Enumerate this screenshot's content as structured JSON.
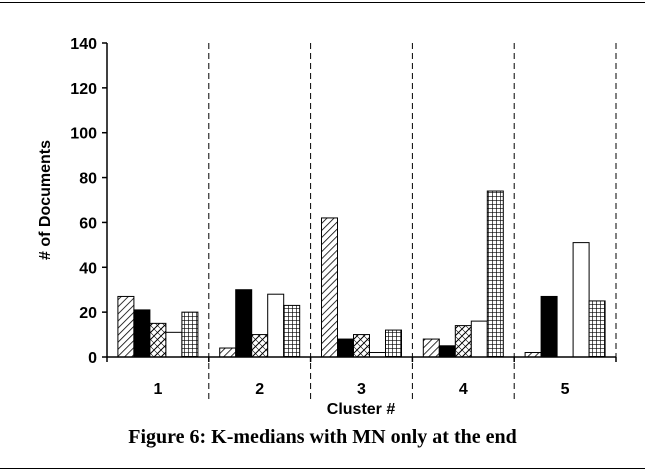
{
  "chart_data": {
    "type": "bar",
    "categories": [
      "1",
      "2",
      "3",
      "4",
      "5"
    ],
    "series": [
      {
        "pattern": "diagonal-hatch",
        "values": [
          27,
          4,
          62,
          8,
          2
        ]
      },
      {
        "pattern": "solid-black",
        "values": [
          21,
          30,
          8,
          5,
          27
        ]
      },
      {
        "pattern": "cross-hatch",
        "values": [
          15,
          10,
          10,
          14,
          0
        ]
      },
      {
        "pattern": "white",
        "values": [
          11,
          28,
          2,
          16,
          51
        ]
      },
      {
        "pattern": "grid",
        "values": [
          20,
          23,
          12,
          74,
          25
        ]
      }
    ],
    "xlabel": "Cluster #",
    "ylabel": "# of Documents",
    "ylim": [
      0,
      140
    ],
    "yticks": [
      "0",
      "20",
      "40",
      "60",
      "80",
      "100",
      "120",
      "140"
    ],
    "separators": "dashed",
    "legend": "none"
  },
  "caption": "Figure 6: K-medians with MN only at the end"
}
